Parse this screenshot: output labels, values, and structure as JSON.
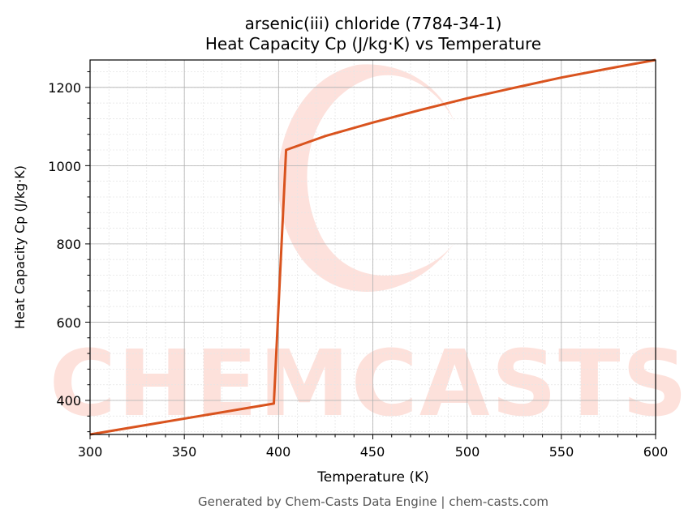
{
  "chart_data": {
    "type": "line",
    "title": "arsenic(iii) chloride (7784-34-1)",
    "subtitle": "Heat Capacity Cp (J/kg·K) vs Temperature",
    "xlabel": "Temperature (K)",
    "ylabel": "Heat Capacity Cp (J/kg·K)",
    "xlim": [
      300,
      600
    ],
    "ylim": [
      313,
      1270
    ],
    "xticks": [
      300,
      350,
      400,
      450,
      500,
      550,
      600
    ],
    "yticks": [
      400,
      600,
      800,
      1000,
      1200
    ],
    "grid": true,
    "legend": null,
    "series": [
      {
        "name": "Cp",
        "color": "#d9531e",
        "x": [
          300,
          397.5,
          404,
          425,
          450,
          475,
          500,
          525,
          550,
          575,
          600
        ],
        "y": [
          313,
          392,
          1040,
          1076,
          1110,
          1142,
          1172,
          1199,
          1225,
          1248,
          1270
        ]
      }
    ],
    "watermark": "CHEMCASTS",
    "footer": "Generated by Chem-Casts Data Engine | chem-casts.com"
  },
  "labels": {
    "title": "arsenic(iii) chloride (7784-34-1)",
    "subtitle": "Heat Capacity Cp (J/kg·K) vs Temperature",
    "xlabel": "Temperature (K)",
    "ylabel": "Heat Capacity Cp (J/kg·K)",
    "footer": "Generated by Chem-Casts Data Engine | chem-casts.com",
    "watermark": "CHEMCASTS",
    "xt0": "300",
    "xt1": "350",
    "xt2": "400",
    "xt3": "450",
    "xt4": "500",
    "xt5": "550",
    "xt6": "600",
    "yt0": "400",
    "yt1": "600",
    "yt2": "800",
    "yt3": "1000",
    "yt4": "1200"
  }
}
